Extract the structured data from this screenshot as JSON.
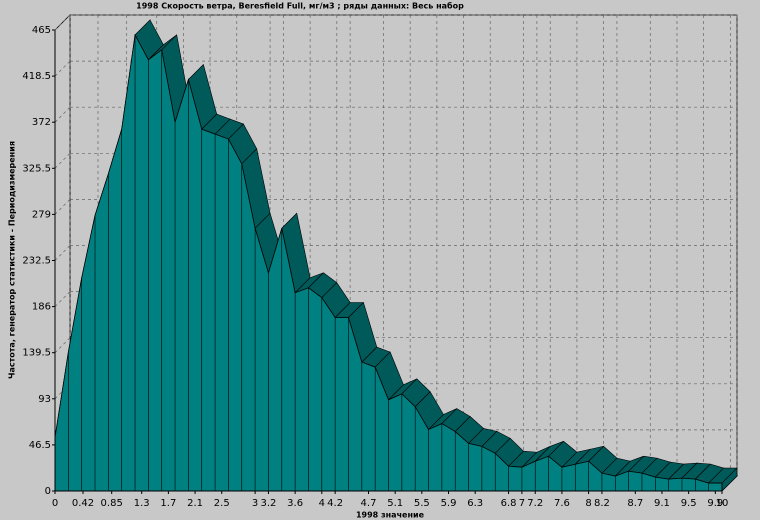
{
  "chart_data": {
    "type": "area3d",
    "title": "1998 Скорость ветра, Beresfield Full,  мг/м3 ; ряды данных: Весь набор",
    "x_label": "1998  значение",
    "y_label": "Частота, генератор статистики - Периодизмерения",
    "xlim": [
      0,
      10
    ],
    "ylim": [
      0,
      465
    ],
    "xticks": [
      0,
      0.42,
      0.85,
      1.3,
      1.7,
      2.1,
      2.5,
      3,
      3.2,
      3.6,
      4,
      4.2,
      4.7,
      5.1,
      5.5,
      5.9,
      6.3,
      6.8,
      7,
      7.2,
      7.6,
      8,
      8.2,
      8.7,
      9.1,
      9.5,
      9.9,
      10
    ],
    "yticks": [
      0,
      46.5,
      93,
      139.5,
      186,
      232.5,
      279,
      325.5,
      372,
      418.5,
      465
    ],
    "grid": true,
    "color": "#008080",
    "x": [
      0,
      0.2,
      0.4,
      0.6,
      0.8,
      1,
      1.2,
      1.4,
      1.6,
      1.8,
      2,
      2.2,
      2.4,
      2.6,
      2.8,
      3,
      3.2,
      3.4,
      3.6,
      3.8,
      4,
      4.2,
      4.4,
      4.6,
      4.8,
      5,
      5.2,
      5.4,
      5.6,
      5.8,
      6,
      6.2,
      6.4,
      6.6,
      6.8,
      7,
      7.2,
      7.4,
      7.6,
      7.8,
      8,
      8.2,
      8.4,
      8.6,
      8.8,
      9,
      9.2,
      9.4,
      9.6,
      9.8,
      10
    ],
    "values": [
      54,
      140,
      215,
      278,
      320,
      365,
      460,
      435,
      445,
      372,
      415,
      365,
      360,
      355,
      330,
      265,
      220,
      265,
      200,
      205,
      195,
      175,
      175,
      130,
      125,
      92,
      98,
      85,
      62,
      68,
      60,
      48,
      45,
      38,
      25,
      24,
      30,
      35,
      24,
      27,
      30,
      18,
      15,
      20,
      18,
      14,
      12,
      13,
      12,
      8,
      8
    ]
  }
}
